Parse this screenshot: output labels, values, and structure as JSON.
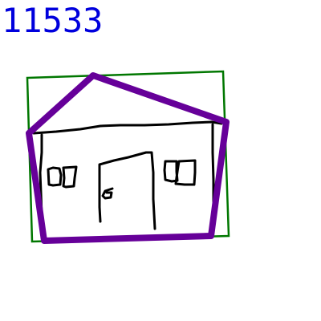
{
  "label": {
    "text": "11533",
    "color": "#0000dd"
  },
  "sketch": {
    "subject": "house",
    "colors": {
      "bounding_box": "#007700",
      "outline": "#660099",
      "ink": "#000000"
    }
  }
}
